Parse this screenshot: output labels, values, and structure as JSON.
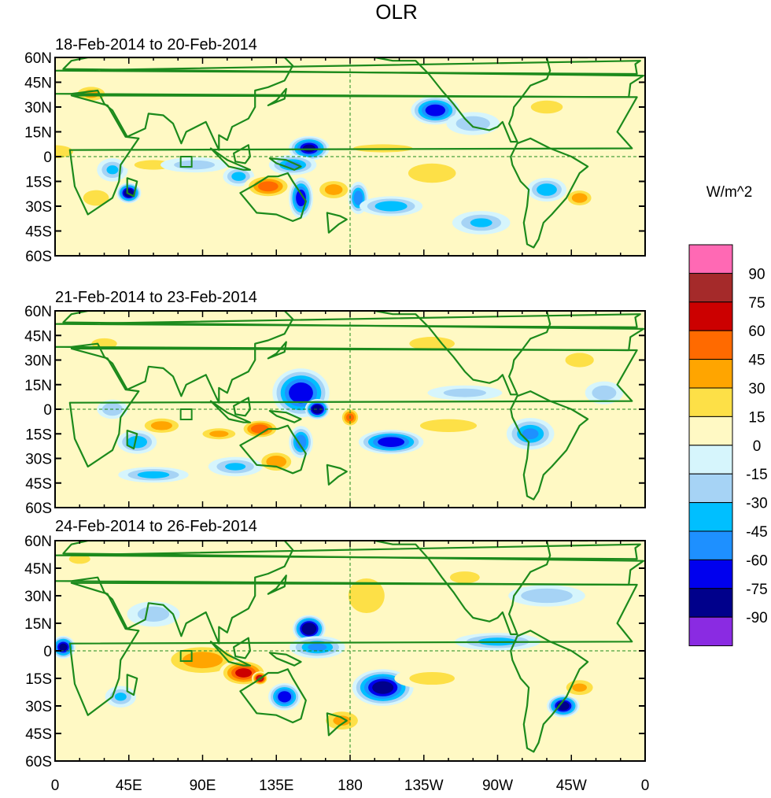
{
  "title": "OLR",
  "unit_label": "W/m^2",
  "colors": {
    "frame": "#000000",
    "coast": "#1c8a1c",
    "border": "#1c8a1c",
    "refline": "#1c8a1c"
  },
  "panels": [
    {
      "period": "18-Feb-2014 to 20-Feb-2014",
      "anomalies": [
        {
          "lon": 22,
          "lat": 38,
          "rx": 10,
          "ry": 5,
          "v": 32
        },
        {
          "lon": 0,
          "lat": 3,
          "rx": 14,
          "ry": 5,
          "v": 28
        },
        {
          "lon": 28,
          "lat": 10,
          "rx": 14,
          "ry": 5,
          "v": 12
        },
        {
          "lon": 35,
          "lat": -8,
          "rx": 8,
          "ry": 6,
          "v": -30
        },
        {
          "lon": 45,
          "lat": -22,
          "rx": 6,
          "ry": 5,
          "v": -88
        },
        {
          "lon": 25,
          "lat": -25,
          "rx": 10,
          "ry": 6,
          "v": 28
        },
        {
          "lon": 60,
          "lat": -5,
          "rx": 16,
          "ry": 4,
          "v": 24
        },
        {
          "lon": 85,
          "lat": -5,
          "rx": 18,
          "ry": 4,
          "v": -22
        },
        {
          "lon": 112,
          "lat": -12,
          "rx": 8,
          "ry": 5,
          "v": -35
        },
        {
          "lon": 130,
          "lat": -18,
          "rx": 12,
          "ry": 6,
          "v": 52
        },
        {
          "lon": 155,
          "lat": 5,
          "rx": 10,
          "ry": 6,
          "v": -75
        },
        {
          "lon": 145,
          "lat": -5,
          "rx": 12,
          "ry": 5,
          "v": -45
        },
        {
          "lon": 150,
          "lat": -25,
          "rx": 6,
          "ry": 10,
          "v": -70
        },
        {
          "lon": 170,
          "lat": -20,
          "rx": 10,
          "ry": 6,
          "v": 35
        },
        {
          "lon": 185,
          "lat": -25,
          "rx": 5,
          "ry": 8,
          "v": -55
        },
        {
          "lon": 205,
          "lat": -30,
          "rx": 16,
          "ry": 5,
          "v": -40
        },
        {
          "lon": 232,
          "lat": 28,
          "rx": 12,
          "ry": 7,
          "v": -70
        },
        {
          "lon": 255,
          "lat": 20,
          "rx": 14,
          "ry": 6,
          "v": -25
        },
        {
          "lon": 230,
          "lat": -10,
          "rx": 20,
          "ry": 8,
          "v": 24
        },
        {
          "lon": 300,
          "lat": -20,
          "rx": 10,
          "ry": 6,
          "v": -40
        },
        {
          "lon": 320,
          "lat": -25,
          "rx": 8,
          "ry": 5,
          "v": 38
        },
        {
          "lon": 300,
          "lat": 30,
          "rx": 15,
          "ry": 6,
          "v": 20
        },
        {
          "lon": 200,
          "lat": 5,
          "rx": 30,
          "ry": 4,
          "v": 18
        },
        {
          "lon": 260,
          "lat": -40,
          "rx": 15,
          "ry": 6,
          "v": -30
        },
        {
          "lon": 100,
          "lat": 40,
          "rx": 20,
          "ry": 8,
          "v": 12
        }
      ]
    },
    {
      "period": "21-Feb-2014 to 23-Feb-2014",
      "anomalies": [
        {
          "lon": 30,
          "lat": 40,
          "rx": 12,
          "ry": 5,
          "v": 20
        },
        {
          "lon": 35,
          "lat": 0,
          "rx": 8,
          "ry": 5,
          "v": -28
        },
        {
          "lon": 65,
          "lat": -10,
          "rx": 12,
          "ry": 5,
          "v": 35
        },
        {
          "lon": 50,
          "lat": -20,
          "rx": 10,
          "ry": 6,
          "v": -40
        },
        {
          "lon": 100,
          "lat": -15,
          "rx": 12,
          "ry": 4,
          "v": 32
        },
        {
          "lon": 125,
          "lat": -12,
          "rx": 10,
          "ry": 5,
          "v": 55
        },
        {
          "lon": 150,
          "lat": 10,
          "rx": 14,
          "ry": 12,
          "v": -72
        },
        {
          "lon": 160,
          "lat": 0,
          "rx": 6,
          "ry": 5,
          "v": -92
        },
        {
          "lon": 135,
          "lat": -32,
          "rx": 10,
          "ry": 6,
          "v": 40
        },
        {
          "lon": 150,
          "lat": -20,
          "rx": 6,
          "ry": 8,
          "v": -55
        },
        {
          "lon": 110,
          "lat": -35,
          "rx": 14,
          "ry": 5,
          "v": -30
        },
        {
          "lon": 180,
          "lat": -5,
          "rx": 5,
          "ry": 5,
          "v": 50
        },
        {
          "lon": 205,
          "lat": -20,
          "rx": 16,
          "ry": 6,
          "v": -70
        },
        {
          "lon": 240,
          "lat": -10,
          "rx": 22,
          "ry": 5,
          "v": 28
        },
        {
          "lon": 290,
          "lat": -15,
          "rx": 12,
          "ry": 8,
          "v": -45
        },
        {
          "lon": 250,
          "lat": 10,
          "rx": 20,
          "ry": 4,
          "v": -20
        },
        {
          "lon": 230,
          "lat": 40,
          "rx": 20,
          "ry": 6,
          "v": 22
        },
        {
          "lon": 320,
          "lat": 30,
          "rx": 12,
          "ry": 6,
          "v": 24
        },
        {
          "lon": 60,
          "lat": -40,
          "rx": 18,
          "ry": 4,
          "v": -35
        },
        {
          "lon": 335,
          "lat": 10,
          "rx": 10,
          "ry": 6,
          "v": -25
        }
      ]
    },
    {
      "period": "24-Feb-2014 to 26-Feb-2014",
      "anomalies": [
        {
          "lon": 5,
          "lat": 2,
          "rx": 6,
          "ry": 5,
          "v": -78
        },
        {
          "lon": 15,
          "lat": 50,
          "rx": 10,
          "ry": 4,
          "v": 20
        },
        {
          "lon": 90,
          "lat": -5,
          "rx": 22,
          "ry": 8,
          "v": 36
        },
        {
          "lon": 115,
          "lat": -12,
          "rx": 12,
          "ry": 6,
          "v": 62
        },
        {
          "lon": 125,
          "lat": -15,
          "rx": 4,
          "ry": 3,
          "v": 80
        },
        {
          "lon": 140,
          "lat": -25,
          "rx": 8,
          "ry": 6,
          "v": -70
        },
        {
          "lon": 155,
          "lat": 12,
          "rx": 8,
          "ry": 6,
          "v": -95
        },
        {
          "lon": 160,
          "lat": 2,
          "rx": 14,
          "ry": 5,
          "v": -45
        },
        {
          "lon": 200,
          "lat": -20,
          "rx": 15,
          "ry": 8,
          "v": -80
        },
        {
          "lon": 190,
          "lat": 30,
          "rx": 14,
          "ry": 12,
          "v": 28
        },
        {
          "lon": 175,
          "lat": -38,
          "rx": 12,
          "ry": 6,
          "v": 30
        },
        {
          "lon": 230,
          "lat": -15,
          "rx": 20,
          "ry": 5,
          "v": 22
        },
        {
          "lon": 270,
          "lat": 5,
          "rx": 22,
          "ry": 4,
          "v": -35
        },
        {
          "lon": 310,
          "lat": -30,
          "rx": 8,
          "ry": 5,
          "v": -85
        },
        {
          "lon": 320,
          "lat": -20,
          "rx": 10,
          "ry": 5,
          "v": 30
        },
        {
          "lon": 300,
          "lat": 30,
          "rx": 20,
          "ry": 5,
          "v": -28
        },
        {
          "lon": 60,
          "lat": 20,
          "rx": 14,
          "ry": 6,
          "v": -22
        },
        {
          "lon": 40,
          "lat": -25,
          "rx": 8,
          "ry": 5,
          "v": -30
        },
        {
          "lon": 250,
          "lat": 40,
          "rx": 14,
          "ry": 5,
          "v": 20
        }
      ]
    }
  ],
  "lat_labels": [
    "60N",
    "45N",
    "30N",
    "15N",
    "0",
    "15S",
    "30S",
    "45S",
    "60S"
  ],
  "lon_labels": [
    "0",
    "45E",
    "90E",
    "135E",
    "180",
    "135W",
    "90W",
    "45W",
    "0"
  ],
  "colorbar": {
    "levels": [
      "90",
      "75",
      "60",
      "45",
      "30",
      "15",
      "0",
      "-15",
      "-30",
      "-45",
      "-60",
      "-75",
      "-90"
    ],
    "thresholds": [
      -90,
      -75,
      -60,
      -45,
      -30,
      -15,
      0,
      15,
      30,
      45,
      60,
      75,
      90
    ],
    "colors": [
      "#8a2be2",
      "#00008b",
      "#0000ee",
      "#1e90ff",
      "#00bfff",
      "#a6d3f5",
      "#d6f5fc",
      "#fff9c4",
      "#fde047",
      "#ffa500",
      "#ff6a00",
      "#cc0000",
      "#a52a2a",
      "#ff69b4"
    ]
  },
  "dateline_lon": 180
}
